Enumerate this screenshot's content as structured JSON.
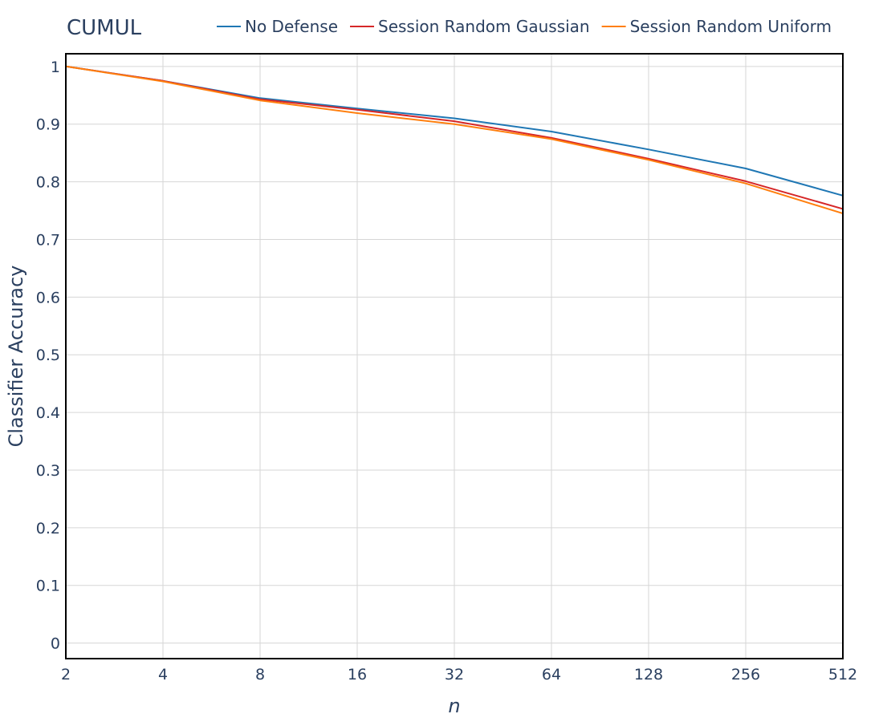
{
  "chart_data": {
    "type": "line",
    "title": "CUMUL",
    "xlabel": "n",
    "ylabel": "Classifier Accuracy",
    "x": [
      2,
      4,
      8,
      16,
      32,
      64,
      128,
      256,
      512
    ],
    "x_tick_labels": [
      "2",
      "4",
      "8",
      "16",
      "32",
      "64",
      "128",
      "256",
      "512"
    ],
    "x_scale": "log2",
    "xlim": [
      2,
      512
    ],
    "y_ticks": [
      0,
      0.1,
      0.2,
      0.3,
      0.4,
      0.5,
      0.6,
      0.7,
      0.8,
      0.9,
      1
    ],
    "y_tick_labels": [
      "0",
      "0.1",
      "0.2",
      "0.3",
      "0.4",
      "0.5",
      "0.6",
      "0.7",
      "0.8",
      "0.9",
      "1"
    ],
    "ylim": [
      -0.027,
      1.022
    ],
    "grid": true,
    "legend_position": "top",
    "series": [
      {
        "name": "No Defense",
        "color": "#1f77b4",
        "values": [
          1.0,
          0.975,
          0.945,
          0.927,
          0.91,
          0.887,
          0.856,
          0.823,
          0.776
        ]
      },
      {
        "name": "Session Random Gaussian",
        "color": "#d62728",
        "values": [
          1.0,
          0.975,
          0.943,
          0.925,
          0.905,
          0.876,
          0.84,
          0.801,
          0.753
        ]
      },
      {
        "name": "Session Random Uniform",
        "color": "#ff7f0e",
        "values": [
          1.0,
          0.974,
          0.941,
          0.919,
          0.9,
          0.874,
          0.838,
          0.797,
          0.745
        ]
      }
    ]
  }
}
